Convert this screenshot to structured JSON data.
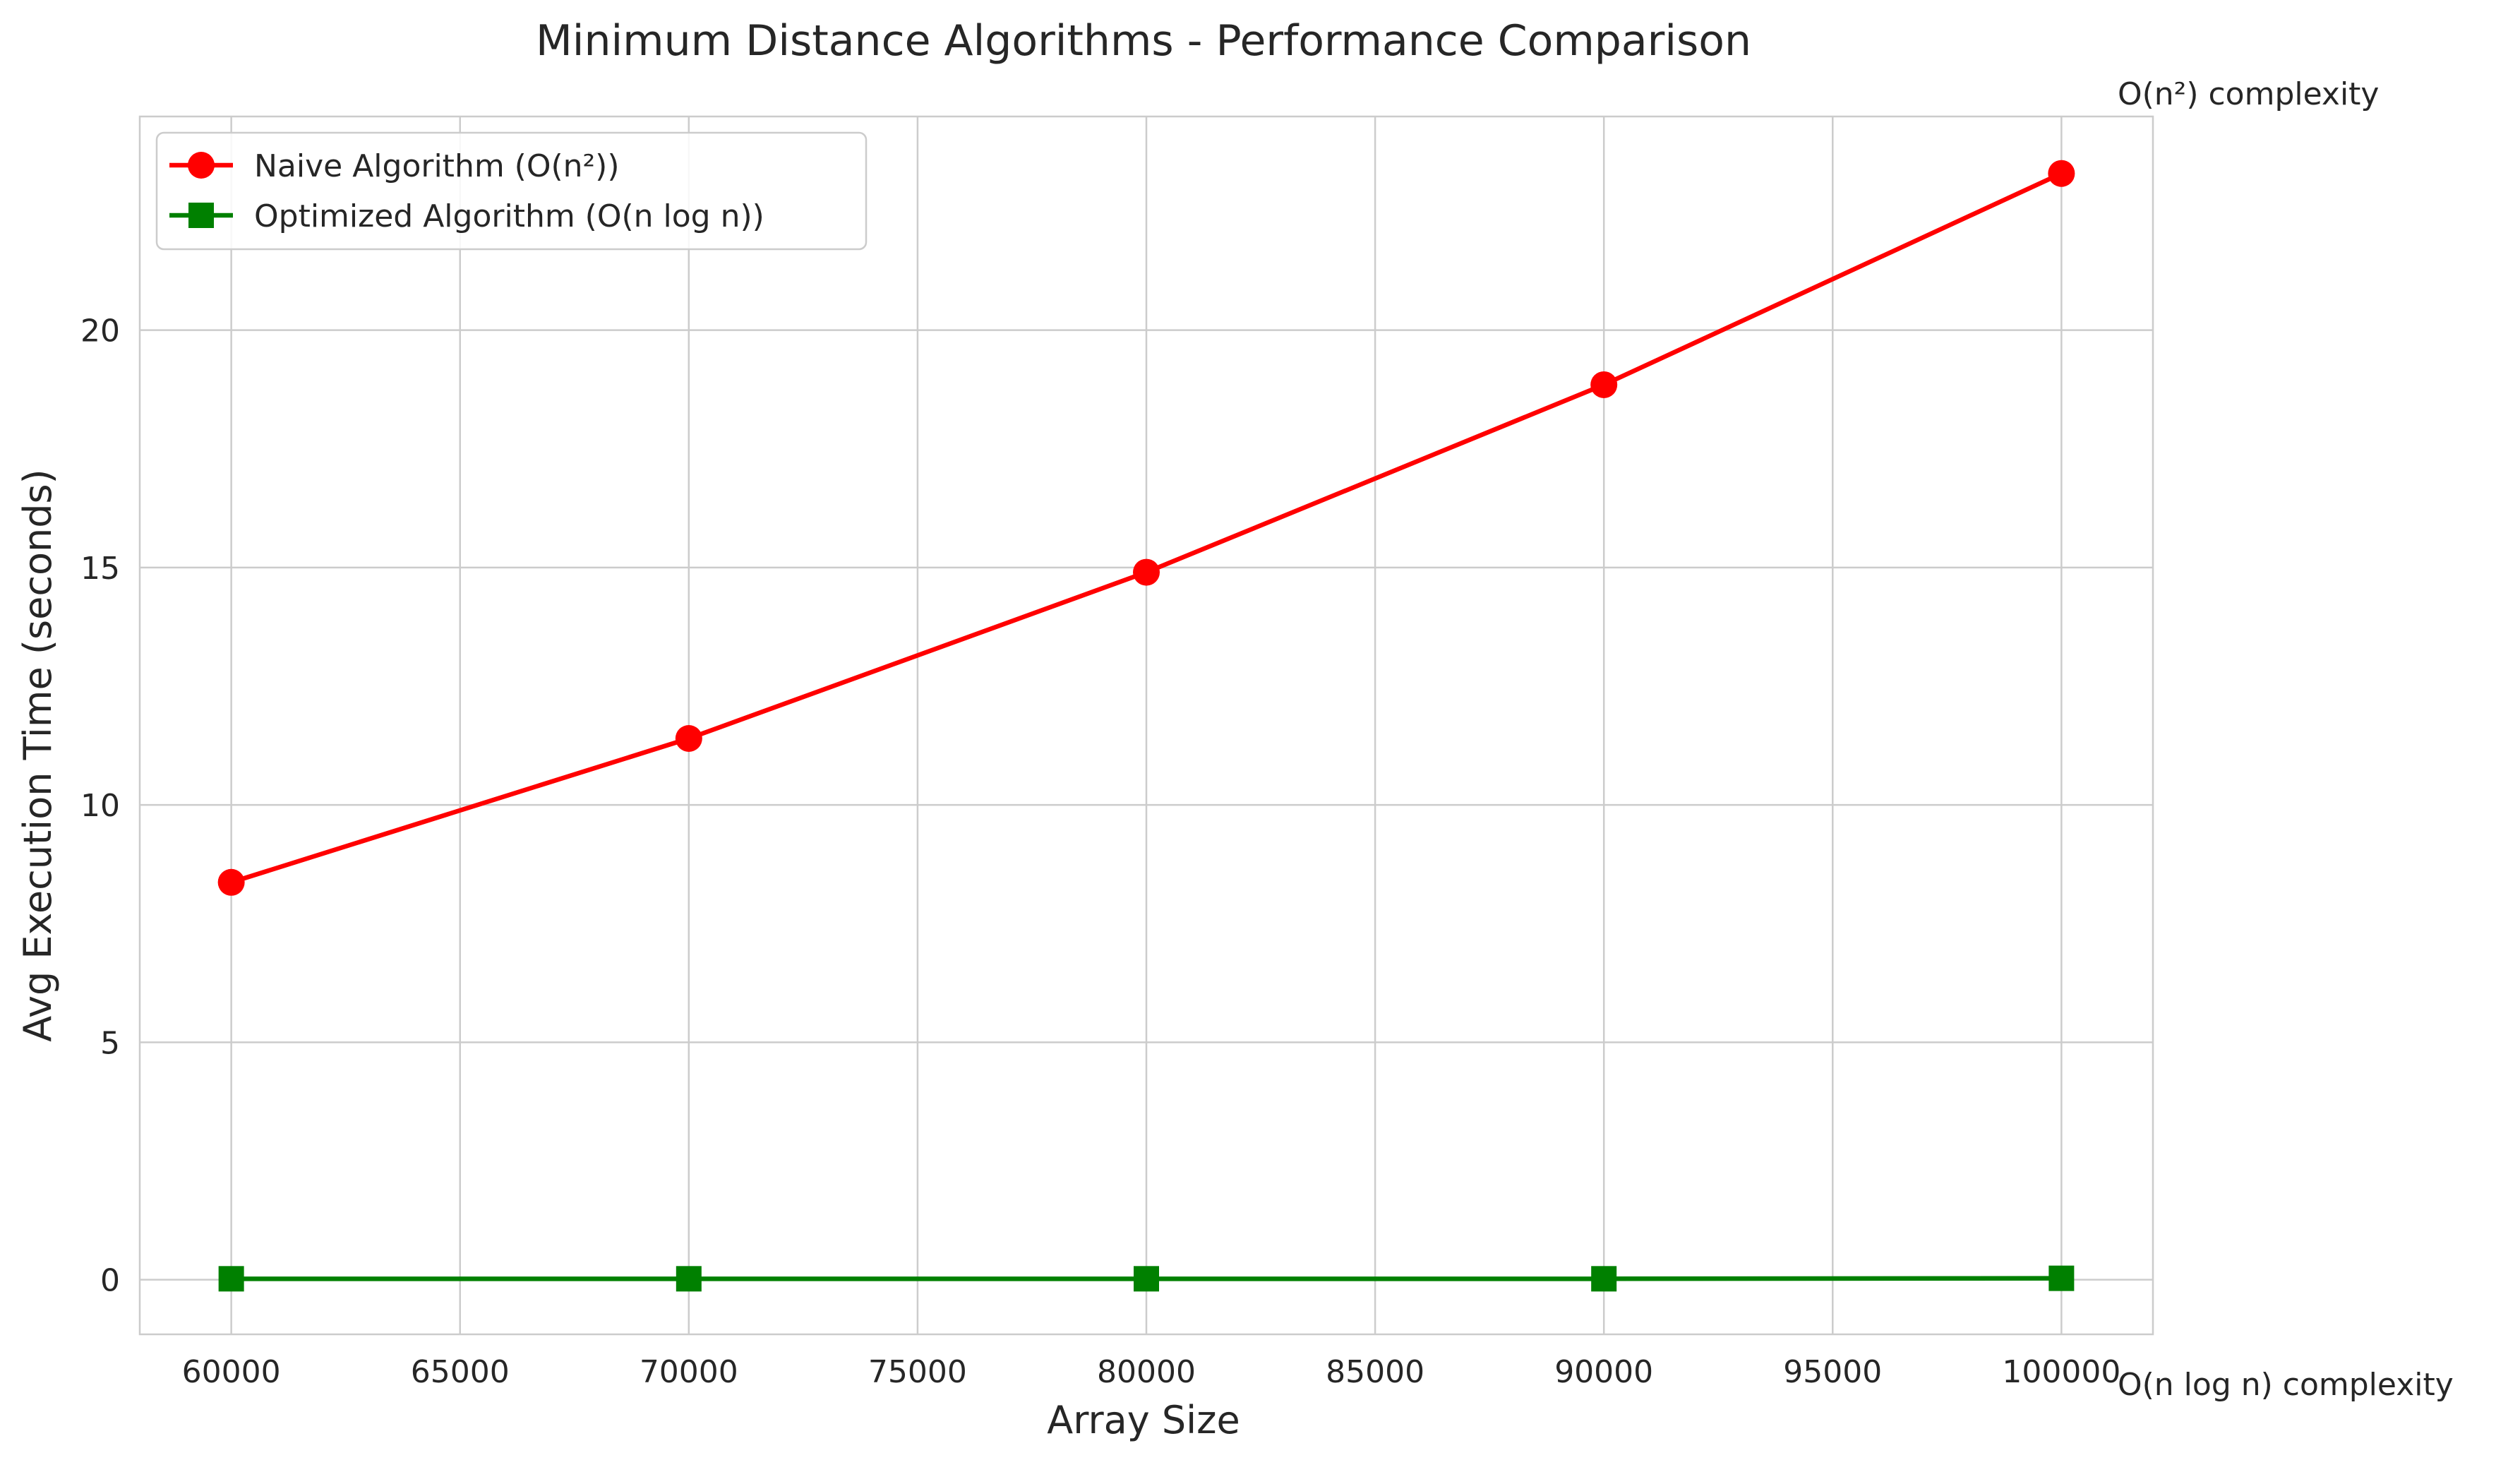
{
  "chart_data": {
    "type": "line",
    "title": "Minimum Distance Algorithms - Performance Comparison",
    "xlabel": "Array Size",
    "ylabel": "Avg Execution Time (seconds)",
    "x": [
      60000,
      70000,
      80000,
      90000,
      100000
    ],
    "xlim": [
      58000,
      102000
    ],
    "ylim": [
      -1.15,
      24.5
    ],
    "xticks": [
      60000,
      65000,
      70000,
      75000,
      80000,
      85000,
      90000,
      95000,
      100000
    ],
    "yticks": [
      0,
      5,
      10,
      15,
      20
    ],
    "grid": true,
    "legend_position": "top-left",
    "series": [
      {
        "name": "Naive Algorithm (O(n²))",
        "values": [
          8.37,
          11.4,
          14.9,
          18.85,
          23.3
        ],
        "color": "#ff0000",
        "marker": "circle"
      },
      {
        "name": "Optimized Algorithm (O(n log n))",
        "values": [
          0.02,
          0.02,
          0.02,
          0.02,
          0.03
        ],
        "color": "#008000",
        "marker": "square"
      }
    ],
    "annotations": [
      {
        "text": "O(n²) complexity",
        "color": "#ff0000",
        "anchor": "top-right-outside"
      },
      {
        "text": "O(n log n) complexity",
        "color": "#008000",
        "anchor": "bottom-right-outside"
      }
    ]
  }
}
